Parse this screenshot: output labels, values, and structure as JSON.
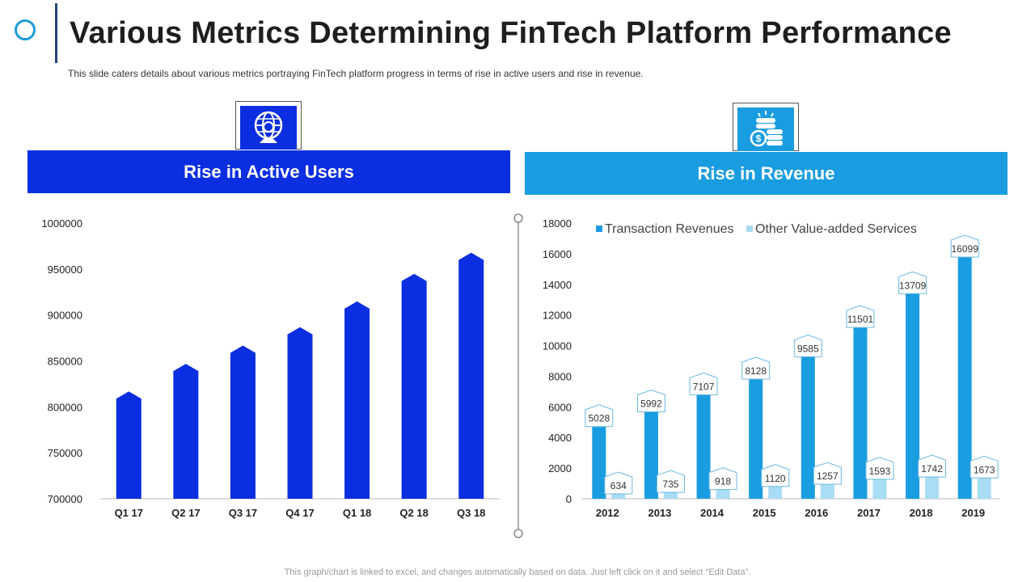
{
  "header": {
    "title": "Various Metrics Determining FinTech Platform Performance",
    "subtitle": "This slide caters details about various  metrics portraying FinTech  platform progress  in terms of rise in active users and rise in revenue."
  },
  "panels": {
    "users": {
      "label": "Rise in Active Users",
      "icon": "globe-user-icon",
      "color": "#0a2ee0"
    },
    "revenue": {
      "label": "Rise in Revenue",
      "icon": "money-coins-icon",
      "color": "#1a9de0"
    }
  },
  "footnote": "This graph/chart is linked to excel,  and changes automatically based on data. Just left click on it and select “Edit Data”.",
  "chart_data": [
    {
      "type": "bar",
      "title": "Rise in Active Users",
      "categories": [
        "Q1 17",
        "Q2 17",
        "Q3 17",
        "Q4 17",
        "Q1 18",
        "Q2 18",
        "Q3 18"
      ],
      "values": [
        815000,
        845000,
        865000,
        885000,
        913000,
        943000,
        966000
      ],
      "ylim": [
        700000,
        1000000
      ],
      "yticks": [
        700000,
        750000,
        800000,
        850000,
        900000,
        950000,
        1000000
      ],
      "xlabel": "",
      "ylabel": "",
      "color": "#0a2ee0"
    },
    {
      "type": "bar",
      "title": "Rise in Revenue",
      "categories": [
        "2012",
        "2013",
        "2014",
        "2015",
        "2016",
        "2017",
        "2018",
        "2019"
      ],
      "series": [
        {
          "name": "Transaction Revenues",
          "values": [
            5028,
            5992,
            7107,
            8128,
            9585,
            11501,
            13709,
            16099
          ],
          "color": "#1a9de0"
        },
        {
          "name": "Other Value-added Services",
          "values": [
            634,
            735,
            918,
            1120,
            1257,
            1593,
            1742,
            1673
          ],
          "color": "#a9dcf5"
        }
      ],
      "ylim": [
        0,
        18000
      ],
      "yticks": [
        0,
        2000,
        4000,
        6000,
        8000,
        10000,
        12000,
        14000,
        16000,
        18000
      ],
      "legend": "top",
      "xlabel": "",
      "ylabel": ""
    }
  ]
}
